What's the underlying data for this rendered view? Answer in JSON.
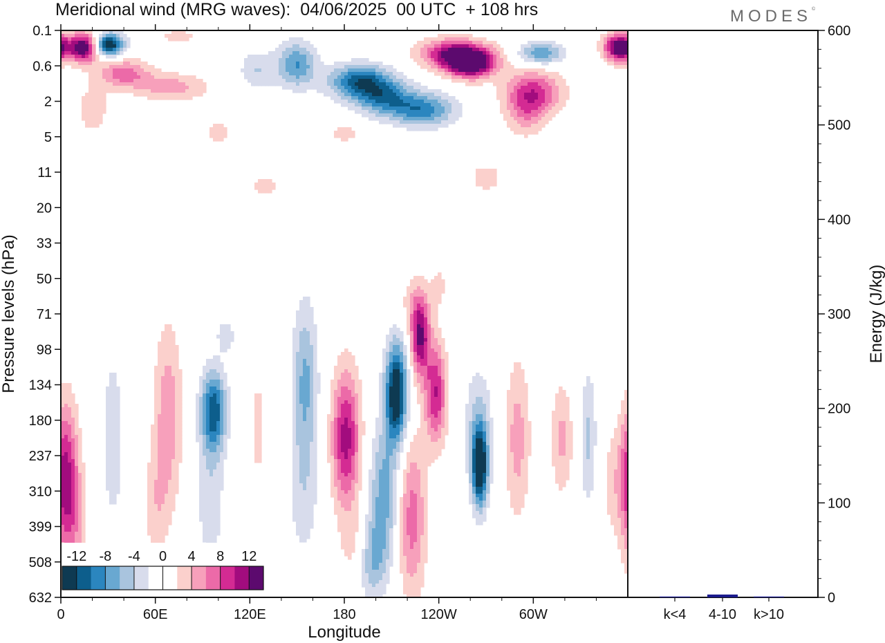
{
  "header": {
    "title": "Meridional wind (MRG waves):  04/06/2025  00 UTC  + 108 hrs",
    "brand": "MODES",
    "brand_mark": "©"
  },
  "chart_data": [
    {
      "type": "heatmap",
      "title": "Meridional wind (MRG waves):  04/06/2025  00 UTC  + 108 hrs",
      "xlabel": "Longitude",
      "ylabel": "Pressure levels (hPa)",
      "x_ticks": [
        "0",
        "60E",
        "120E",
        "180",
        "120W",
        "60W"
      ],
      "x_tick_degrees": [
        0,
        60,
        120,
        180,
        240,
        300
      ],
      "x_range_degrees": [
        0,
        360
      ],
      "y_ticks": [
        "0.1",
        "0.6",
        "2",
        "5",
        "11",
        "20",
        "33",
        "50",
        "71",
        "98",
        "134",
        "180",
        "237",
        "310",
        "399",
        "508",
        "632"
      ],
      "y_axis": "model levels, top 0.1 hPa to bottom 632 hPa",
      "colorbar": {
        "labels": [
          "-12",
          "-8",
          "-4",
          "0",
          "4",
          "8",
          "12"
        ],
        "level_values": [
          -14,
          -12,
          -10,
          -8,
          -6,
          -4,
          -2,
          0,
          2,
          4,
          6,
          8,
          10,
          12,
          14
        ],
        "colors": [
          "#0e3a52",
          "#0d5e8c",
          "#2b86bf",
          "#69a8d1",
          "#a9c4de",
          "#d8dcec",
          "#ffffff",
          "#ffffff",
          "#fbd0cc",
          "#f7a0bb",
          "#ec6aa8",
          "#d42b93",
          "#a20c7e",
          "#5c0a6e"
        ],
        "placement": "bottom-left inside plot"
      },
      "features": [
        {
          "region": "upper stratosphere near 0.1-0.6 hPa",
          "sign": "mixed",
          "peak": "±14"
        },
        {
          "region": "troposphere 100-600 hPa, 0-330 longitude",
          "sign": "alternating",
          "peak": "±14"
        },
        {
          "longitude": 215,
          "sign": "negative",
          "peak": "-14"
        },
        {
          "longitude": 285,
          "sign": "negative",
          "peak": "-14"
        },
        {
          "longitude": 235,
          "sign": "positive",
          "peak": "14"
        }
      ]
    },
    {
      "type": "bar",
      "categories": [
        "k<4",
        "4-10",
        "k>10"
      ],
      "values": [
        0,
        3,
        0
      ],
      "ylabel": "Energy (J/kg)",
      "ylim": [
        0,
        600
      ],
      "y_ticks": [
        "0",
        "100",
        "200",
        "300",
        "400",
        "500",
        "600"
      ],
      "bar_color": "#1a1a8c"
    }
  ]
}
